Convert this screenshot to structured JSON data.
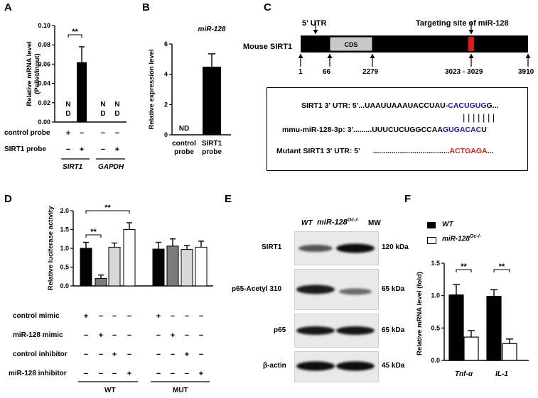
{
  "panels": {
    "A": {
      "letter": "A",
      "ylabel_line1": "Relative mRNA level",
      "ylabel_line2": "(Pellet/input)",
      "yticks": [
        "0.00",
        "0.02",
        "0.04",
        "0.06",
        "0.08",
        "0.10"
      ],
      "sig": "**",
      "nd1": [
        "N",
        "D"
      ],
      "nd2": [
        "N",
        "D"
      ],
      "nd3": [
        "N",
        "D"
      ],
      "rows": [
        {
          "label": "control probe",
          "marks": [
            "+",
            "−",
            "−",
            "−"
          ]
        },
        {
          "label": "SIRT1 probe",
          "marks": [
            "−",
            "+",
            "−",
            "+"
          ]
        }
      ],
      "genes": [
        "SIRT1",
        "GAPDH"
      ]
    },
    "B": {
      "letter": "B",
      "title": "miR-128",
      "ylabel": "Relative expression level",
      "yticks": [
        "0",
        "2",
        "4",
        "6"
      ],
      "nd": "ND",
      "cats": [
        [
          "control",
          "probe"
        ],
        [
          "SIRT1",
          "probe"
        ]
      ]
    },
    "C": {
      "letter": "C",
      "gene_label": "Mouse SIRT1",
      "utr5": "5' UTR",
      "cds": "CDS",
      "target_site": "Targeting site of miR-128",
      "positions": [
        "1",
        "66",
        "2279",
        "3023 - 3029",
        "3910"
      ],
      "seq1_prefix": "SIRT1 3' UTR: 5'...UAAUUAAAUACCUAU-",
      "seq1_hl": "CACUGUG",
      "seq1_suffix": "G...",
      "seq2_prefix": "mmu-miR-128-3p: 3'.........UUUCUCUGGCCAA",
      "seq2_hl": "GUGACAC",
      "seq2_suffix": "U",
      "seq3_prefix": "Mutant SIRT1 3' UTR: 5'",
      "seq3_dots": ".....................................",
      "seq3_hl": "ACTGAGA",
      "seq3_suffix": "...",
      "pair_bars": "| | | | | | |",
      "colors": {
        "blue": "#1a1aa6",
        "red": "#e01818"
      }
    },
    "D": {
      "letter": "D",
      "ylabel": "Relative luciferase activity",
      "yticks": [
        "0.0",
        "0.5",
        "1.0",
        "1.5",
        "2.0"
      ],
      "sig1": "**",
      "sig2": "**",
      "rows": [
        {
          "label": "control mimic",
          "marks": [
            "+",
            "−",
            "−",
            "−",
            "+",
            "−",
            "−",
            "−"
          ]
        },
        {
          "label": "miR-128 mimic",
          "marks": [
            "−",
            "+",
            "−",
            "−",
            "−",
            "+",
            "−",
            "−"
          ]
        },
        {
          "label": "control inhibitor",
          "marks": [
            "−",
            "−",
            "+",
            "−",
            "−",
            "−",
            "+",
            "−"
          ]
        },
        {
          "label": "miR-128 inhibitor",
          "marks": [
            "−",
            "−",
            "−",
            "+",
            "−",
            "−",
            "−",
            "+"
          ]
        }
      ],
      "groups": [
        "WT",
        "MUT"
      ]
    },
    "E": {
      "letter": "E",
      "col_wt": "WT",
      "col_ko": "miR-128",
      "col_ko_sup": "Oc-/-",
      "col_mw": "MW",
      "rows": [
        {
          "label": "SIRT1",
          "mw": "120 kDa"
        },
        {
          "label": "p65-Acetyl 310",
          "mw": "65 kDa"
        },
        {
          "label": "p65",
          "mw": "65 kDa"
        },
        {
          "label": "β-actin",
          "mw": "45 kDa"
        }
      ]
    },
    "F": {
      "letter": "F",
      "legend_wt": "WT",
      "legend_ko": "miR-128",
      "legend_ko_sup": "Oc-/-",
      "ylabel": "Relative mRNA level (fold)",
      "yticks": [
        "0.0",
        "0.5",
        "1.0",
        "1.5"
      ],
      "sig1": "**",
      "sig2": "**",
      "cats": [
        "Tnf-α",
        "IL-1"
      ]
    }
  },
  "chart_data": [
    {
      "type": "bar",
      "panel": "A",
      "ylabel": "Relative mRNA level (Pellet/input)",
      "ylim": [
        0,
        0.1
      ],
      "categories": [
        "SIRT1 control probe",
        "SIRT1 SIRT1 probe",
        "GAPDH control probe",
        "GAPDH SIRT1 probe"
      ],
      "values": [
        0,
        0.062,
        0,
        0
      ],
      "errors": [
        0,
        0.016,
        0,
        0
      ],
      "notes": [
        "N D",
        "",
        "N D",
        "N D"
      ]
    },
    {
      "type": "bar",
      "panel": "B",
      "title": "miR-128",
      "ylabel": "Relative expression level",
      "ylim": [
        0,
        6
      ],
      "categories": [
        "control probe",
        "SIRT1 probe"
      ],
      "values": [
        0,
        4.5
      ],
      "errors": [
        0,
        0.85
      ],
      "notes": [
        "ND",
        ""
      ]
    },
    {
      "type": "bar",
      "panel": "D",
      "ylabel": "Relative luciferase activity",
      "ylim": [
        0,
        2.0
      ],
      "categories": [
        "WT-1",
        "WT-2",
        "WT-3",
        "WT-4",
        "MUT-1",
        "MUT-2",
        "MUT-3",
        "MUT-4"
      ],
      "values": [
        1.0,
        0.2,
        1.03,
        1.5,
        0.98,
        1.06,
        0.97,
        1.03
      ],
      "errors": [
        0.16,
        0.09,
        0.11,
        0.18,
        0.18,
        0.19,
        0.1,
        0.16
      ],
      "colors": [
        "#000000",
        "#7a7a7a",
        "#d8d8d8",
        "#ffffff",
        "#000000",
        "#7a7a7a",
        "#d8d8d8",
        "#ffffff"
      ]
    },
    {
      "type": "bar",
      "panel": "F",
      "ylabel": "Relative mRNA level (fold)",
      "ylim": [
        0,
        1.5
      ],
      "categories": [
        "Tnf-α",
        "IL-1"
      ],
      "series": [
        {
          "name": "WT",
          "values": [
            1.01,
            0.99
          ],
          "errors": [
            0.16,
            0.1
          ],
          "color": "#000000"
        },
        {
          "name": "miR-128Oc-/-",
          "values": [
            0.36,
            0.26
          ],
          "errors": [
            0.1,
            0.07
          ],
          "color": "#ffffff"
        }
      ]
    }
  ]
}
